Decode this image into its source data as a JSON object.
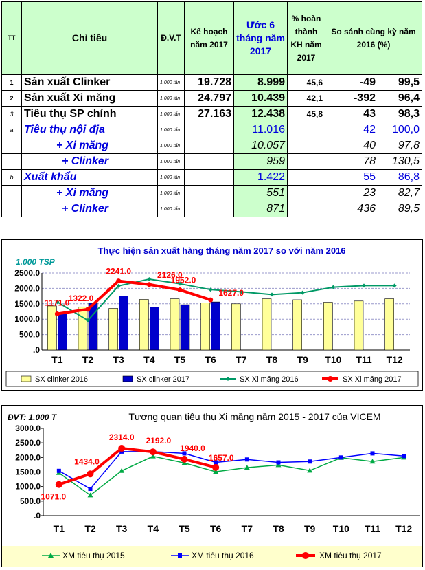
{
  "table": {
    "headers": {
      "tt": "TT",
      "chi_tieu": "Chỉ tiêu",
      "dvt": "Đ.V.T",
      "ke_hoach": "Kế hoạch năm 2017",
      "uoc6": "Ước 6 tháng năm 2017",
      "pct_hoan_thanh": "% hoàn thành KH năm 2017",
      "so_sanh": "So sánh cùng kỳ năm 2016 (%)"
    },
    "rows": [
      {
        "tt": "1",
        "name": "Sản xuất Clinker",
        "unit": "1.000 tấn",
        "plan": "19.728",
        "est": "8.999",
        "pct": "45,6",
        "diff": "-49",
        "ratio": "99,5"
      },
      {
        "tt": "2",
        "name": "Sản xuất Xi măng",
        "unit": "1.000 tấn",
        "plan": "24.797",
        "est": "10.439",
        "pct": "42,1",
        "diff": "-392",
        "ratio": "96,4"
      },
      {
        "tt": "3",
        "name": "Tiêu thụ SP chính",
        "unit": "1.000 tấn",
        "plan": "27.163",
        "est": "12.438",
        "pct": "45,8",
        "diff": "43",
        "ratio": "98,3"
      },
      {
        "tt": "a",
        "name": "Tiêu thụ nội địa",
        "unit": "1.000 tấn",
        "plan": "",
        "est": "11.016",
        "pct": "",
        "diff": "42",
        "ratio": "100,0"
      },
      {
        "tt": "",
        "name": "+ Xi măng",
        "unit": "1.000 tấn",
        "plan": "",
        "est": "10.057",
        "pct": "",
        "diff": "40",
        "ratio": "97,8"
      },
      {
        "tt": "",
        "name": "+ Clinker",
        "unit": "1.000 tấn",
        "plan": "",
        "est": "959",
        "pct": "",
        "diff": "78",
        "ratio": "130,5"
      },
      {
        "tt": "b",
        "name": "Xuất khẩu",
        "unit": "1.000 tấn",
        "plan": "",
        "est": "1.422",
        "pct": "",
        "diff": "55",
        "ratio": "86,8"
      },
      {
        "tt": "",
        "name": "+ Xi măng",
        "unit": "1.000 tấn",
        "plan": "",
        "est": "551",
        "pct": "",
        "diff": "23",
        "ratio": "82,7"
      },
      {
        "tt": "",
        "name": "+ Clinker",
        "unit": "1.000 tấn",
        "plan": "",
        "est": "871",
        "pct": "",
        "diff": "436",
        "ratio": "89,5"
      }
    ]
  },
  "chart_data": [
    {
      "type": "bar",
      "title": "Thực hiện sản xuất hàng tháng năm 2017 so với năm 2016",
      "unit_label": "1.000 TSP",
      "categories": [
        "T1",
        "T2",
        "T3",
        "T4",
        "T5",
        "T6",
        "T7",
        "T8",
        "T9",
        "T10",
        "T11",
        "T12"
      ],
      "ylim": [
        0,
        2500
      ],
      "yticks": [
        "2500.0",
        "2000.0",
        "1500.0",
        "1000.0",
        "500.0",
        ".0"
      ],
      "series": [
        {
          "name": "SX clinker 2016",
          "kind": "bar",
          "color": "#ffff99",
          "values": [
            1430,
            1400,
            1350,
            1640,
            1660,
            1530,
            1500,
            1660,
            1630,
            1550,
            1590,
            1660
          ]
        },
        {
          "name": "SX clinker 2017",
          "kind": "bar",
          "color": "#0000cc",
          "values": [
            1200,
            1520,
            1750,
            1390,
            1470,
            1560,
            null,
            null,
            null,
            null,
            null,
            null
          ]
        },
        {
          "name": "SX Xi măng 2016",
          "kind": "line",
          "color": "#009966",
          "values": [
            1560,
            960,
            2080,
            2300,
            2150,
            1960,
            1890,
            1800,
            1860,
            2040,
            2090,
            2090
          ]
        },
        {
          "name": "SX Xi măng 2017",
          "kind": "line",
          "color": "#ff0000",
          "values": [
            1171,
            1322,
            2241,
            2126,
            1952,
            1627,
            null,
            null,
            null,
            null,
            null,
            null
          ],
          "labels": [
            "1171.0",
            "1322.0",
            "2241.0",
            "2126.0",
            "1952.0",
            "1627.0"
          ]
        }
      ]
    },
    {
      "type": "line",
      "title": "Tương quan tiêu thụ Xi măng năm 2015 - 2017 của VICEM",
      "unit_label": "ĐVT: 1.000 T",
      "categories": [
        "T1",
        "T2",
        "T3",
        "T4",
        "T5",
        "T6",
        "T7",
        "T8",
        "T9",
        "T10",
        "T11",
        "T12"
      ],
      "ylim": [
        0,
        3000
      ],
      "yticks": [
        "3000.0",
        "2500.0",
        "2000.0",
        "1500.0",
        "1000.0",
        "500.0",
        ".0"
      ],
      "series": [
        {
          "name": "XM tiêu thụ 2015",
          "marker": "triangle",
          "color": "#00aa44",
          "values": [
            1470,
            700,
            1540,
            2040,
            1810,
            1510,
            1650,
            1740,
            1550,
            1990,
            1860,
            2000
          ]
        },
        {
          "name": "XM tiêu thụ 2016",
          "marker": "square",
          "color": "#0000ff",
          "values": [
            1540,
            920,
            2200,
            2200,
            2140,
            1830,
            1930,
            1830,
            1860,
            2000,
            2140,
            2050
          ]
        },
        {
          "name": "XM tiêu thụ 2017",
          "marker": "circle",
          "color": "#ff0000",
          "values": [
            1071,
            1434,
            2314,
            2192,
            1940,
            1657,
            null,
            null,
            null,
            null,
            null,
            null
          ],
          "labels": [
            "1071.0",
            "1434.0",
            "2314.0",
            "2192.0",
            "1940.0",
            "1657.0"
          ]
        }
      ]
    }
  ]
}
